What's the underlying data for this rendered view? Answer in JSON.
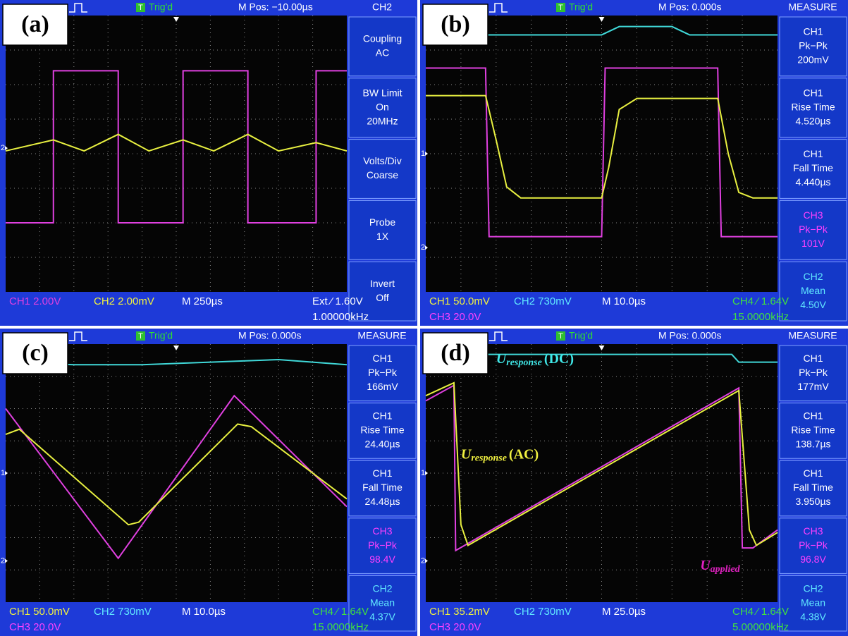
{
  "panels": [
    {
      "label": "(a)",
      "top": {
        "badge": "T",
        "trigger": "Trig'd",
        "position": "M Pos: −10.00µs",
        "menu_title": "CH2"
      },
      "menu": [
        {
          "lines": [
            "Coupling",
            "AC"
          ],
          "color": "#ffffff"
        },
        {
          "lines": [
            "BW Limit",
            "On",
            "20MHz"
          ],
          "color": "#ffffff"
        },
        {
          "lines": [
            "Volts/Div",
            "Coarse"
          ],
          "color": "#ffffff"
        },
        {
          "lines": [
            "Probe",
            "1X"
          ],
          "color": "#ffffff"
        },
        {
          "lines": [
            "Invert",
            "Off"
          ],
          "color": "#ffffff"
        }
      ],
      "markers": [
        "2"
      ],
      "bottom_row1": [
        {
          "text": "CH1 2.00V",
          "color": "#e040e0"
        },
        {
          "text": "CH2 2.00mV",
          "color": "#f0f040"
        },
        {
          "text": "M 250µs",
          "color": "#ffffff"
        },
        {
          "text": "Ext ⁄ 1.60V",
          "color": "#ffffff"
        }
      ],
      "bottom_row2": [
        {
          "text": "1.00000kHz",
          "color": "#ffffff"
        }
      ],
      "annotations": []
    },
    {
      "label": "(b)",
      "top": {
        "badge": "T",
        "trigger": "Trig'd",
        "position": "M Pos: 0.000s",
        "menu_title": "MEASURE"
      },
      "menu": [
        {
          "lines": [
            "CH1",
            "Pk−Pk",
            "200mV"
          ],
          "color": "#ffffff"
        },
        {
          "lines": [
            "CH1",
            "Rise Time",
            "4.520µs"
          ],
          "color": "#ffffff"
        },
        {
          "lines": [
            "CH1",
            "Fall Time",
            "4.440µs"
          ],
          "color": "#ffffff"
        },
        {
          "lines": [
            "CH3",
            "Pk−Pk",
            "101V"
          ],
          "color": "#ff40ff"
        },
        {
          "lines": [
            "CH2",
            "Mean",
            "4.50V"
          ],
          "color": "#60e8ff"
        }
      ],
      "markers": [
        "1",
        "2"
      ],
      "bottom_row1": [
        {
          "text": "CH1  50.0mV",
          "color": "#f0f040"
        },
        {
          "text": "CH2  730mV",
          "color": "#60e8ff"
        },
        {
          "text": "M 10.0µs",
          "color": "#ffffff"
        },
        {
          "text": "CH4 ⁄ 1.64V",
          "color": "#40e040"
        }
      ],
      "bottom_row2": [
        {
          "text": "CH3  20.0V",
          "color": "#ff40ff"
        },
        {
          "text": "15.0000kHz",
          "color": "#40e040"
        }
      ],
      "annotations": []
    },
    {
      "label": "(c)",
      "top": {
        "badge": "T",
        "trigger": "Trig'd",
        "position": "M Pos: 0.000s",
        "menu_title": "MEASURE"
      },
      "menu": [
        {
          "lines": [
            "CH1",
            "Pk−Pk",
            "166mV"
          ],
          "color": "#ffffff"
        },
        {
          "lines": [
            "CH1",
            "Rise Time",
            "24.40µs"
          ],
          "color": "#ffffff"
        },
        {
          "lines": [
            "CH1",
            "Fall Time",
            "24.48µs"
          ],
          "color": "#ffffff"
        },
        {
          "lines": [
            "CH3",
            "Pk−Pk",
            "98.4V"
          ],
          "color": "#ff40ff"
        },
        {
          "lines": [
            "CH2",
            "Mean",
            "4.37V"
          ],
          "color": "#60e8ff"
        }
      ],
      "markers": [
        "1",
        "2"
      ],
      "bottom_row1": [
        {
          "text": "CH1  50.0mV",
          "color": "#f0f040"
        },
        {
          "text": "CH2  730mV",
          "color": "#60e8ff"
        },
        {
          "text": "M 10.0µs",
          "color": "#ffffff"
        },
        {
          "text": "CH4 ⁄ 1.64V",
          "color": "#40e040"
        }
      ],
      "bottom_row2": [
        {
          "text": "CH3  20.0V",
          "color": "#ff40ff"
        },
        {
          "text": "15.0000kHz",
          "color": "#40e040"
        }
      ],
      "annotations": []
    },
    {
      "label": "(d)",
      "top": {
        "badge": "T",
        "trigger": "Trig'd",
        "position": "M Pos: 0.000s",
        "menu_title": "MEASURE"
      },
      "menu": [
        {
          "lines": [
            "CH1",
            "Pk−Pk",
            "177mV"
          ],
          "color": "#ffffff"
        },
        {
          "lines": [
            "CH1",
            "Rise Time",
            "138.7µs"
          ],
          "color": "#ffffff"
        },
        {
          "lines": [
            "CH1",
            "Fall Time",
            "3.950µs"
          ],
          "color": "#ffffff"
        },
        {
          "lines": [
            "CH3",
            "Pk−Pk",
            "96.8V"
          ],
          "color": "#ff40ff"
        },
        {
          "lines": [
            "CH2",
            "Mean",
            "4.38V"
          ],
          "color": "#60e8ff"
        }
      ],
      "markers": [
        "1",
        "2"
      ],
      "bottom_row1": [
        {
          "text": "CH1  35.2mV",
          "color": "#f0f040"
        },
        {
          "text": "CH2  730mV",
          "color": "#60e8ff"
        },
        {
          "text": "M 25.0µs",
          "color": "#ffffff"
        },
        {
          "text": "CH4 ⁄ 1.64V",
          "color": "#40e040"
        }
      ],
      "bottom_row2": [
        {
          "text": "CH3  20.0V",
          "color": "#ff40ff"
        },
        {
          "text": "5.00000kHz",
          "color": "#40e040"
        }
      ],
      "annotations": [
        {
          "main": "U",
          "sub": "response",
          "tail": "(DC)",
          "color": "#40e8e8"
        },
        {
          "main": "U",
          "sub": "response",
          "tail": "(AC)",
          "color": "#f0f040"
        },
        {
          "main": "U",
          "sub": "applied",
          "tail": "",
          "color": "#e020c0"
        }
      ]
    }
  ]
}
